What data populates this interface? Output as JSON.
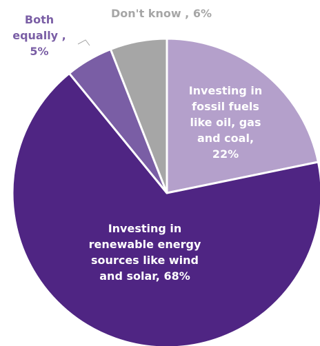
{
  "chart_data": {
    "type": "pie",
    "categories": [
      "Investing in fossil fuels like oil, gas and coal",
      "Investing in renewable energy sources like wind and solar",
      "Both equally",
      "Don't know"
    ],
    "values": [
      22,
      68,
      5,
      6
    ],
    "labels": [
      [
        "Investing in",
        "fossil fuels",
        "like oil, gas",
        "and coal,",
        "22%"
      ],
      [
        "Investing in",
        "renewable energy",
        "sources like wind",
        "and solar, 68%"
      ],
      [
        "Both",
        "equally ,",
        "5%"
      ],
      [
        "Don't know , 6%"
      ]
    ],
    "colors": [
      "#b4a0cb",
      "#4f2583",
      "#7a5ea5",
      "#a6a6a6"
    ],
    "label_colors": [
      "#ffffff",
      "#ffffff",
      "#7a5ea5",
      "#a6a6a6"
    ],
    "start": "12 o'clock",
    "direction": "clockwise",
    "legend": "none"
  }
}
